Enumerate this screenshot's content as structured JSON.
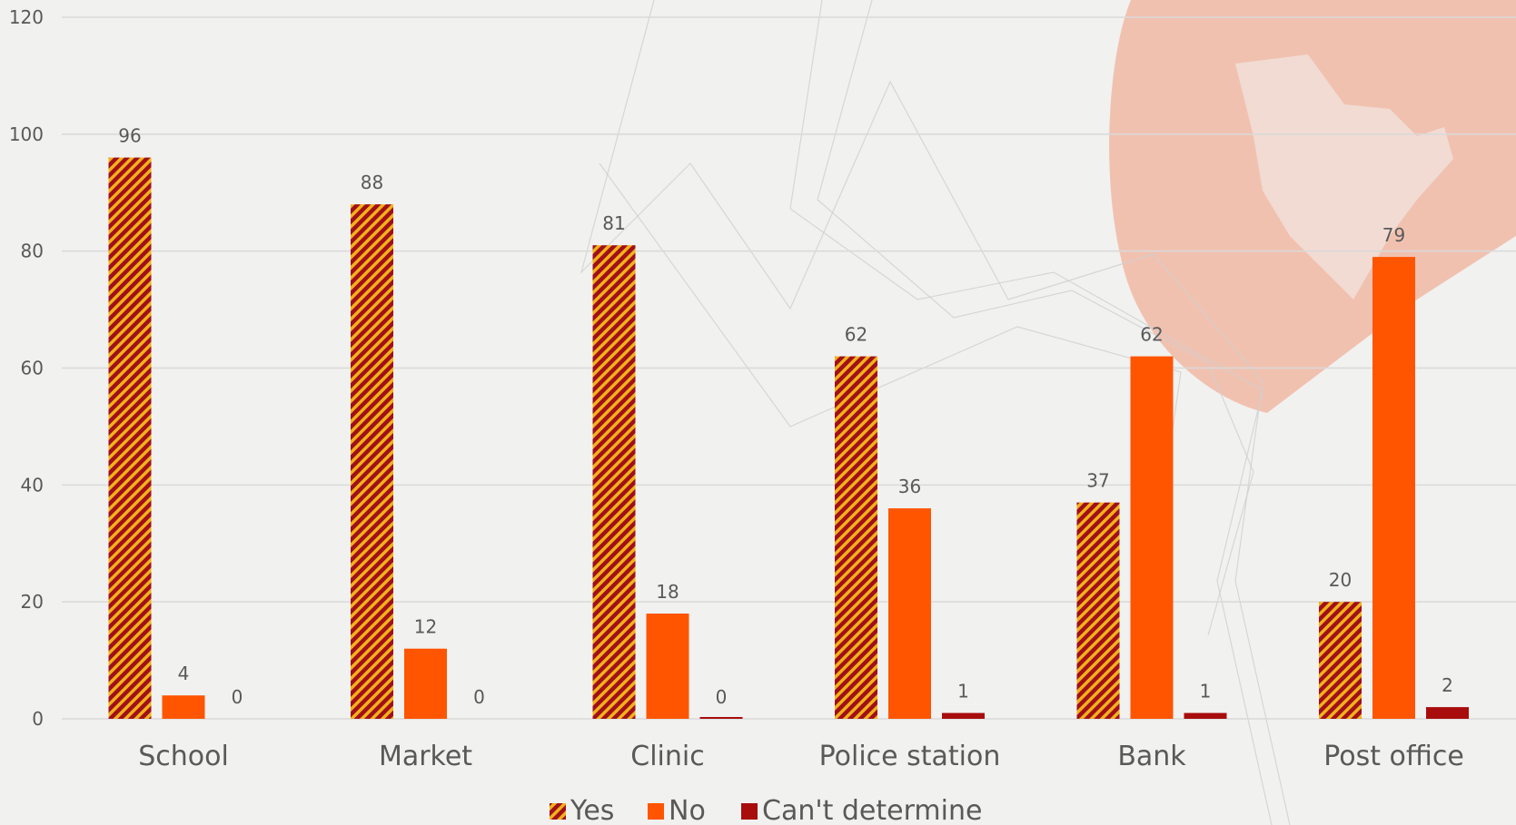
{
  "chart_data": {
    "type": "bar",
    "categories": [
      "School",
      "Market",
      "Clinic",
      "Police station",
      "Bank",
      "Post office"
    ],
    "series": [
      {
        "name": "Yes",
        "values": [
          96,
          88,
          81,
          62,
          37,
          20
        ],
        "color": "#a0101a",
        "pattern": "hatch",
        "pattern_color": "#f2b21a"
      },
      {
        "name": "No",
        "values": [
          4,
          12,
          18,
          36,
          62,
          79
        ],
        "color": "#ff5500"
      },
      {
        "name": "Can't determine",
        "values": [
          0,
          0,
          0,
          1,
          1,
          2
        ],
        "color": "#a80c0c"
      }
    ],
    "data_labels": [
      [
        "96",
        "88",
        "81",
        "62",
        "37",
        "20"
      ],
      [
        "4",
        "12",
        "18",
        "36",
        "62",
        "79"
      ],
      [
        "0",
        "0",
        "0",
        "1",
        "1",
        "2"
      ]
    ],
    "ylim": [
      0,
      120
    ],
    "yticks": [
      0,
      20,
      40,
      60,
      80,
      100,
      120
    ],
    "grid": true,
    "legend_position": "bottom",
    "title": "",
    "xlabel": "",
    "ylabel": ""
  }
}
